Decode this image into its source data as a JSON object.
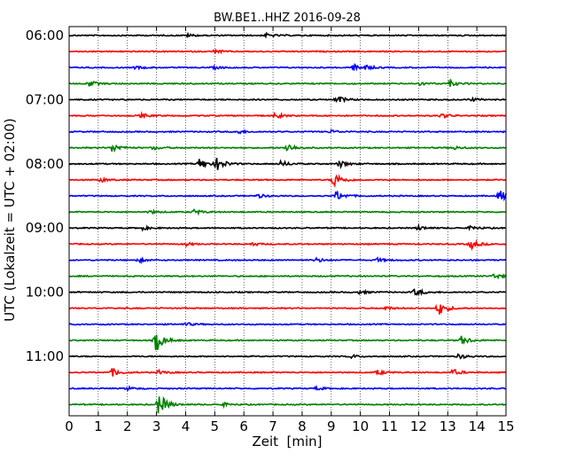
{
  "chart_data": {
    "type": "line",
    "title": "BW.BE1..HHZ 2016-09-28",
    "xlabel": "Zeit  [min]",
    "ylabel": "UTC (Lokalzeit = UTC + 02:00)",
    "xlim": [
      0,
      15
    ],
    "x_ticks": [
      "0",
      "1",
      "2",
      "3",
      "4",
      "5",
      "6",
      "7",
      "8",
      "9",
      "10",
      "11",
      "12",
      "13",
      "14",
      "15"
    ],
    "y_ticks": [
      "06:00",
      "07:00",
      "08:00",
      "09:00",
      "10:00",
      "11:00"
    ],
    "grid": "x-dotted",
    "trace_colors": [
      "#000000",
      "#ff0000",
      "#0000ff",
      "#008000"
    ],
    "traces": [
      {
        "start": "06:00",
        "events": [
          {
            "x": 4.1,
            "amp": 0.25
          },
          {
            "x": 6.8,
            "amp": 0.35
          }
        ]
      },
      {
        "start": "06:15",
        "events": [
          {
            "x": 5.0,
            "amp": 0.35
          }
        ]
      },
      {
        "start": "06:30",
        "events": [
          {
            "x": 9.8,
            "amp": 0.55
          },
          {
            "x": 10.2,
            "amp": 0.35
          },
          {
            "x": 2.3,
            "amp": 0.25
          },
          {
            "x": 5.0,
            "amp": 0.25
          }
        ]
      },
      {
        "start": "06:45",
        "events": [
          {
            "x": 0.7,
            "amp": 0.55
          },
          {
            "x": 12.0,
            "amp": 0.35
          },
          {
            "x": 13.1,
            "amp": 0.5
          }
        ]
      },
      {
        "start": "07:00",
        "events": [
          {
            "x": 9.2,
            "amp": 0.75
          },
          {
            "x": 13.8,
            "amp": 0.3
          }
        ]
      },
      {
        "start": "07:15",
        "events": [
          {
            "x": 2.5,
            "amp": 0.35
          },
          {
            "x": 7.1,
            "amp": 0.45
          },
          {
            "x": 12.8,
            "amp": 0.45
          }
        ]
      },
      {
        "start": "07:30",
        "events": [
          {
            "x": 5.8,
            "amp": 0.35
          },
          {
            "x": 9.0,
            "amp": 0.3
          }
        ]
      },
      {
        "start": "07:45",
        "events": [
          {
            "x": 1.5,
            "amp": 0.8
          },
          {
            "x": 7.5,
            "amp": 0.85
          },
          {
            "x": 2.9,
            "amp": 0.3
          },
          {
            "x": 13.2,
            "amp": 0.35
          }
        ]
      },
      {
        "start": "08:00",
        "events": [
          {
            "x": 4.5,
            "amp": 1.0
          },
          {
            "x": 5.1,
            "amp": 1.2
          },
          {
            "x": 7.3,
            "amp": 0.55
          },
          {
            "x": 9.3,
            "amp": 0.6
          }
        ]
      },
      {
        "start": "08:15",
        "events": [
          {
            "x": 9.1,
            "amp": 1.5
          },
          {
            "x": 1.1,
            "amp": 0.35
          }
        ]
      },
      {
        "start": "08:30",
        "events": [
          {
            "x": 9.2,
            "amp": 0.9
          },
          {
            "x": 14.8,
            "amp": 1.1
          },
          {
            "x": 6.5,
            "amp": 0.35
          }
        ]
      },
      {
        "start": "08:45",
        "events": [
          {
            "x": 4.3,
            "amp": 0.45
          },
          {
            "x": 2.8,
            "amp": 0.3
          }
        ]
      },
      {
        "start": "09:00",
        "events": [
          {
            "x": 2.5,
            "amp": 0.35
          },
          {
            "x": 12.0,
            "amp": 0.4
          },
          {
            "x": 13.8,
            "amp": 0.4
          }
        ]
      },
      {
        "start": "09:15",
        "events": [
          {
            "x": 13.8,
            "amp": 0.9
          },
          {
            "x": 4.0,
            "amp": 0.3
          },
          {
            "x": 6.3,
            "amp": 0.3
          }
        ]
      },
      {
        "start": "09:30",
        "events": [
          {
            "x": 2.4,
            "amp": 0.35
          },
          {
            "x": 8.5,
            "amp": 0.4
          },
          {
            "x": 10.6,
            "amp": 0.35
          }
        ]
      },
      {
        "start": "09:45",
        "events": [
          {
            "x": 14.6,
            "amp": 0.5
          }
        ]
      },
      {
        "start": "10:00",
        "events": [
          {
            "x": 11.9,
            "amp": 0.7
          },
          {
            "x": 10.0,
            "amp": 0.3
          }
        ]
      },
      {
        "start": "10:15",
        "events": [
          {
            "x": 12.7,
            "amp": 1.3
          },
          {
            "x": 10.9,
            "amp": 0.3
          }
        ]
      },
      {
        "start": "10:30",
        "events": [
          {
            "x": 4.0,
            "amp": 0.3
          }
        ]
      },
      {
        "start": "10:45",
        "events": [
          {
            "x": 3.0,
            "amp": 2.0
          },
          {
            "x": 13.5,
            "amp": 0.85
          }
        ]
      },
      {
        "start": "11:00",
        "events": [
          {
            "x": 9.7,
            "amp": 0.3
          },
          {
            "x": 13.4,
            "amp": 0.45
          }
        ]
      },
      {
        "start": "11:15",
        "events": [
          {
            "x": 1.5,
            "amp": 0.75
          },
          {
            "x": 10.6,
            "amp": 0.45
          },
          {
            "x": 13.2,
            "amp": 0.55
          },
          {
            "x": 3.1,
            "amp": 0.35
          }
        ]
      },
      {
        "start": "11:30",
        "events": [
          {
            "x": 2.0,
            "amp": 0.3
          },
          {
            "x": 8.5,
            "amp": 0.3
          }
        ]
      },
      {
        "start": "11:45",
        "events": [
          {
            "x": 3.1,
            "amp": 2.1
          },
          {
            "x": 5.3,
            "amp": 0.3
          }
        ]
      }
    ]
  }
}
